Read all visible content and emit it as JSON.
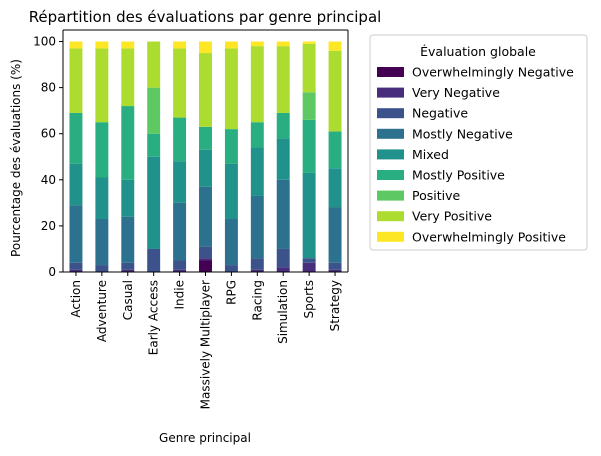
{
  "chart_data": {
    "type": "bar",
    "stacked": true,
    "title": "Répartition des évaluations par genre principal",
    "xlabel": "Genre principal",
    "ylabel": "Pourcentage des évaluations (%)",
    "ylim": [
      0,
      105
    ],
    "yticks": [
      0,
      20,
      40,
      60,
      80,
      100
    ],
    "grid": false,
    "legend": {
      "title": "Évaluation globale",
      "placement": "outside-right"
    },
    "categories": [
      "Action",
      "Adventure",
      "Casual",
      "Early Access",
      "Indie",
      "Massively Multiplayer",
      "RPG",
      "Racing",
      "Simulation",
      "Sports",
      "Strategy"
    ],
    "series": [
      {
        "name": "Overwhelmingly Negative",
        "color": "#440154",
        "values": [
          0,
          0,
          0,
          0,
          0,
          5,
          0,
          0,
          0,
          0,
          0
        ]
      },
      {
        "name": "Very Negative",
        "color": "#472d7b",
        "values": [
          1,
          0,
          1,
          0,
          1,
          1,
          0,
          1,
          2,
          4,
          1
        ]
      },
      {
        "name": "Negative",
        "color": "#3b528b",
        "values": [
          3,
          3,
          3,
          10,
          4,
          5,
          3,
          5,
          8,
          2,
          3
        ]
      },
      {
        "name": "Mostly Negative",
        "color": "#2c728e",
        "values": [
          25,
          20,
          20,
          0,
          25,
          26,
          20,
          27,
          30,
          0,
          24
        ]
      },
      {
        "name": "Mixed",
        "color": "#21918c",
        "values": [
          18,
          18,
          16,
          40,
          18,
          16,
          24,
          21,
          18,
          37,
          17
        ]
      },
      {
        "name": "Mostly Positive",
        "color": "#28ae80",
        "values": [
          22,
          24,
          32,
          10,
          19,
          10,
          15,
          11,
          11,
          23,
          16
        ]
      },
      {
        "name": "Positive",
        "color": "#5ec962",
        "values": [
          0,
          0,
          0,
          20,
          0,
          0,
          0,
          0,
          0,
          12,
          0
        ]
      },
      {
        "name": "Very Positive",
        "color": "#addc30",
        "values": [
          28,
          32,
          25,
          20,
          30,
          32,
          35,
          33,
          29,
          21,
          35
        ]
      },
      {
        "name": "Overwhelmingly Positive",
        "color": "#fde725",
        "values": [
          3,
          3,
          3,
          0,
          3,
          5,
          3,
          2,
          2,
          1,
          4
        ]
      }
    ]
  }
}
